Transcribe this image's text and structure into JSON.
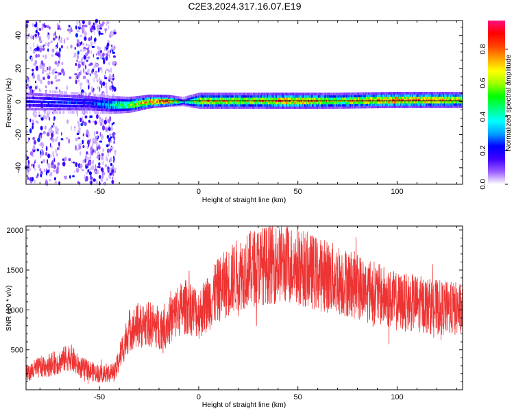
{
  "title": "C2E3.2024.317.16.07.E19",
  "chart_data": [
    {
      "type": "heatmap",
      "xlabel": "Height of straight line (km)",
      "ylabel": "Frequency (Hz)",
      "xlim": [
        -87,
        133
      ],
      "ylim": [
        -50,
        49
      ],
      "xticks": [
        -50,
        0,
        50,
        100
      ],
      "yticks": [
        -40,
        -20,
        0,
        20,
        40
      ],
      "colorbar": {
        "label": "Normalized spectral amplitude",
        "range": [
          0,
          0.97
        ],
        "ticks": [
          0.0,
          0.2,
          0.4,
          0.6,
          0.8
        ],
        "colormap": [
          "#ffffff",
          "#9a5cff",
          "#4000ff",
          "#0000ff",
          "#00a0ff",
          "#00ffff",
          "#00ff80",
          "#00ff00",
          "#a0ff00",
          "#ffff00",
          "#ffa000",
          "#ff4000",
          "#ff0000",
          "#ff1080"
        ]
      },
      "ridge": [
        {
          "x": -85,
          "y": 0.0,
          "amp": 0.18,
          "width": 5.0
        },
        {
          "x": -70,
          "y": -0.5,
          "amp": 0.25,
          "width": 4.5
        },
        {
          "x": -55,
          "y": -1.0,
          "amp": 0.22,
          "width": 4.0
        },
        {
          "x": -45,
          "y": -2.0,
          "amp": 0.35,
          "width": 3.5
        },
        {
          "x": -35,
          "y": -2.0,
          "amp": 0.6,
          "width": 3.0
        },
        {
          "x": -25,
          "y": 0.0,
          "amp": 0.8,
          "width": 2.5
        },
        {
          "x": -15,
          "y": 0.5,
          "amp": 0.9,
          "width": 2.0
        },
        {
          "x": -8,
          "y": 0.0,
          "amp": 0.3,
          "width": 1.5
        },
        {
          "x": 0,
          "y": 0.5,
          "amp": 0.7,
          "width": 3.0
        },
        {
          "x": 25,
          "y": 0.5,
          "amp": 0.65,
          "width": 3.0
        },
        {
          "x": 45,
          "y": 0.5,
          "amp": 0.85,
          "width": 3.0
        },
        {
          "x": 70,
          "y": 0.5,
          "amp": 0.65,
          "width": 3.0
        },
        {
          "x": 100,
          "y": 1.0,
          "amp": 0.85,
          "width": 3.0
        },
        {
          "x": 133,
          "y": 1.0,
          "amp": 0.7,
          "width": 3.0
        }
      ],
      "scatter_bands": [
        {
          "x0": -87,
          "x1": -70,
          "density": 0.45
        },
        {
          "x0": -70,
          "x1": -62,
          "density": 0.15
        },
        {
          "x0": -62,
          "x1": -42,
          "density": 0.6
        }
      ]
    },
    {
      "type": "line",
      "xlabel": "Height of straight line (km)",
      "ylabel": "SNR (10 * v/v)",
      "xlim": [
        -87,
        133
      ],
      "ylim": [
        0,
        2050
      ],
      "xticks": [
        -50,
        0,
        50,
        100
      ],
      "yticks": [
        500,
        1000,
        1500,
        2000
      ],
      "series_color": "#ee3333",
      "series": [
        {
          "x": [
            -87,
            -80,
            -70,
            -65,
            -60,
            -50,
            -42,
            -40,
            -35,
            -30,
            -25,
            -20,
            -15,
            -10,
            -5,
            0,
            10,
            20,
            30,
            40,
            50,
            60,
            70,
            80,
            90,
            100,
            110,
            120,
            133
          ],
          "values": [
            200,
            280,
            350,
            420,
            280,
            200,
            220,
            400,
            750,
            800,
            820,
            780,
            850,
            1000,
            1050,
            950,
            1250,
            1450,
            1550,
            1580,
            1550,
            1450,
            1380,
            1300,
            1200,
            1100,
            1080,
            1030,
            1000
          ]
        }
      ]
    }
  ]
}
